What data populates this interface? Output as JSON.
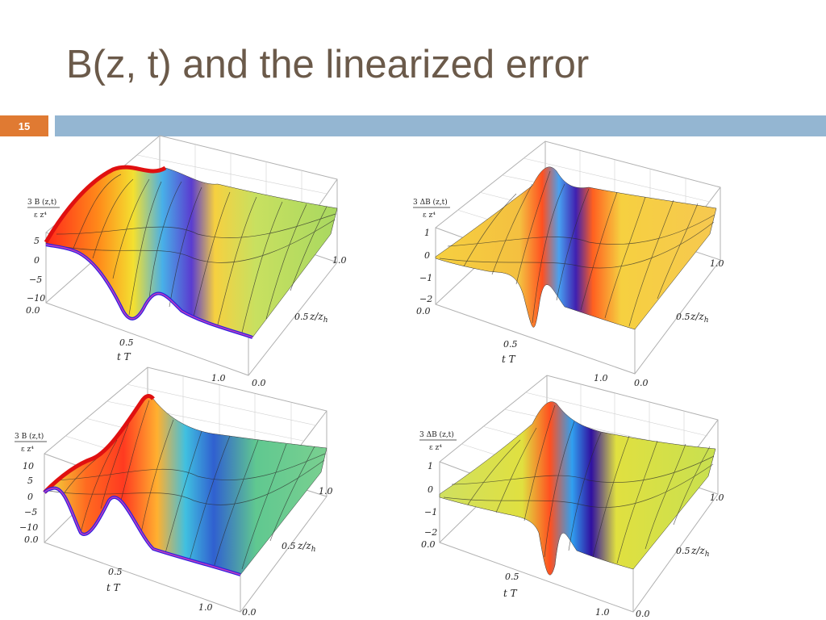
{
  "slide": {
    "title": "B(z, t) and the linearized error",
    "number": "15"
  },
  "colors": {
    "accent_orange": "#e07a32",
    "bar_blue": "#94b6d2",
    "title_color": "#6b5a4a"
  },
  "chart_data": [
    {
      "type": "surface",
      "position": "top-left",
      "zlabel_num": "3 B (z,t)",
      "zlabel_den": "ε z⁴",
      "z_ticks": [
        "5",
        "0",
        "−5",
        "−10"
      ],
      "t_ticks": [
        "0.0",
        "0.5",
        "1.0"
      ],
      "zh_ticks": [
        "0.0",
        "0.5",
        "1.0"
      ],
      "t_axis_label": "t T",
      "zh_axis_label": "z/z_h",
      "zh_label_a": "z/z",
      "zh_label_sub": "h",
      "t_label_t": "t",
      "t_label_T": "T"
    },
    {
      "type": "surface",
      "position": "top-right",
      "zlabel_num": "3 ΔB (z,t)",
      "zlabel_den": "ε z⁴",
      "z_ticks": [
        "1",
        "0",
        "−1",
        "−2"
      ],
      "t_ticks": [
        "0.0",
        "0.5",
        "1.0"
      ],
      "zh_ticks": [
        "0.0",
        "0.5",
        "1.0"
      ],
      "zh_label_a": "z/z",
      "zh_label_sub": "h",
      "t_label_t": "t",
      "t_label_T": "T"
    },
    {
      "type": "surface",
      "position": "bottom-left",
      "zlabel_num": "3 B (z,t)",
      "zlabel_den": "ε z⁴",
      "z_ticks": [
        "10",
        "5",
        "0",
        "−5",
        "−10"
      ],
      "t_ticks": [
        "0.0",
        "0.5",
        "1.0"
      ],
      "zh_ticks": [
        "0.0",
        "0.5",
        "1.0"
      ],
      "zh_label_a": "z/z",
      "zh_label_sub": "h",
      "t_label_t": "t",
      "t_label_T": "T"
    },
    {
      "type": "surface",
      "position": "bottom-right",
      "zlabel_num": "3 ΔB (z,t)",
      "zlabel_den": "ε z⁴",
      "z_ticks": [
        "1",
        "0",
        "−1",
        "−2"
      ],
      "t_ticks": [
        "0.0",
        "0.5",
        "1.0"
      ],
      "zh_ticks": [
        "0.0",
        "0.5",
        "1.0"
      ],
      "zh_label_a": "z/z",
      "zh_label_sub": "h",
      "t_label_t": "t",
      "t_label_T": "T"
    }
  ]
}
